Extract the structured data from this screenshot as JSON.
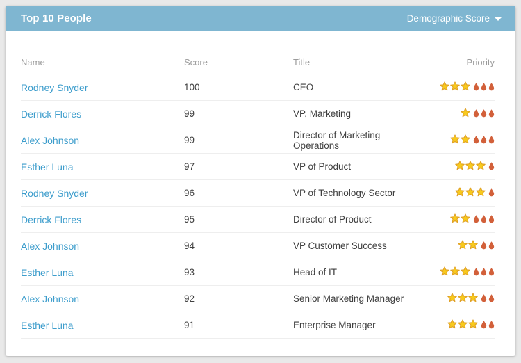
{
  "header": {
    "title": "Top 10 People",
    "dropdown_label": "Demographic Score"
  },
  "table": {
    "columns": [
      "Name",
      "Score",
      "Title",
      "Priority"
    ],
    "rows": [
      {
        "name": "Rodney Snyder",
        "score": "100",
        "title": "CEO",
        "priority": {
          "stars": 3,
          "drops": 3
        }
      },
      {
        "name": "Derrick Flores",
        "score": "99",
        "title": "VP, Marketing",
        "priority": {
          "stars": 1,
          "drops": 3
        }
      },
      {
        "name": "Alex Johnson",
        "score": "99",
        "title": "Director of Marketing Operations",
        "priority": {
          "stars": 2,
          "drops": 3
        }
      },
      {
        "name": "Esther Luna",
        "score": "97",
        "title": "VP of Product",
        "priority": {
          "stars": 3,
          "drops": 1
        }
      },
      {
        "name": "Rodney Snyder",
        "score": "96",
        "title": "VP of Technology Sector",
        "priority": {
          "stars": 3,
          "drops": 1
        }
      },
      {
        "name": "Derrick Flores",
        "score": "95",
        "title": "Director of Product",
        "priority": {
          "stars": 2,
          "drops": 3
        }
      },
      {
        "name": "Alex Johnson",
        "score": "94",
        "title": "VP Customer Success",
        "priority": {
          "stars": 2,
          "drops": 2
        }
      },
      {
        "name": "Esther Luna",
        "score": "93",
        "title": "Head of IT",
        "priority": {
          "stars": 3,
          "drops": 3
        }
      },
      {
        "name": "Alex Johnson",
        "score": "92",
        "title": "Senior Marketing Manager",
        "priority": {
          "stars": 3,
          "drops": 2
        }
      },
      {
        "name": "Esther Luna",
        "score": "91",
        "title": "Enterprise Manager",
        "priority": {
          "stars": 3,
          "drops": 2
        }
      }
    ]
  },
  "icons": {
    "star": "star-icon",
    "drop": "priority-drop-icon",
    "caret": "caret-down-icon"
  },
  "colors": {
    "page_bg": "#E9E9E9",
    "card_bg": "#FFFFFF",
    "header_bg": "#7FB6D1",
    "link": "#3D9DCC",
    "text": "#3F3F3F",
    "muted": "#9B9B9B",
    "row_border": "#EEEEEE",
    "star_fill": "#F8CA1C",
    "star_stroke": "#DFA026",
    "drop_fill": "#D2603A"
  }
}
